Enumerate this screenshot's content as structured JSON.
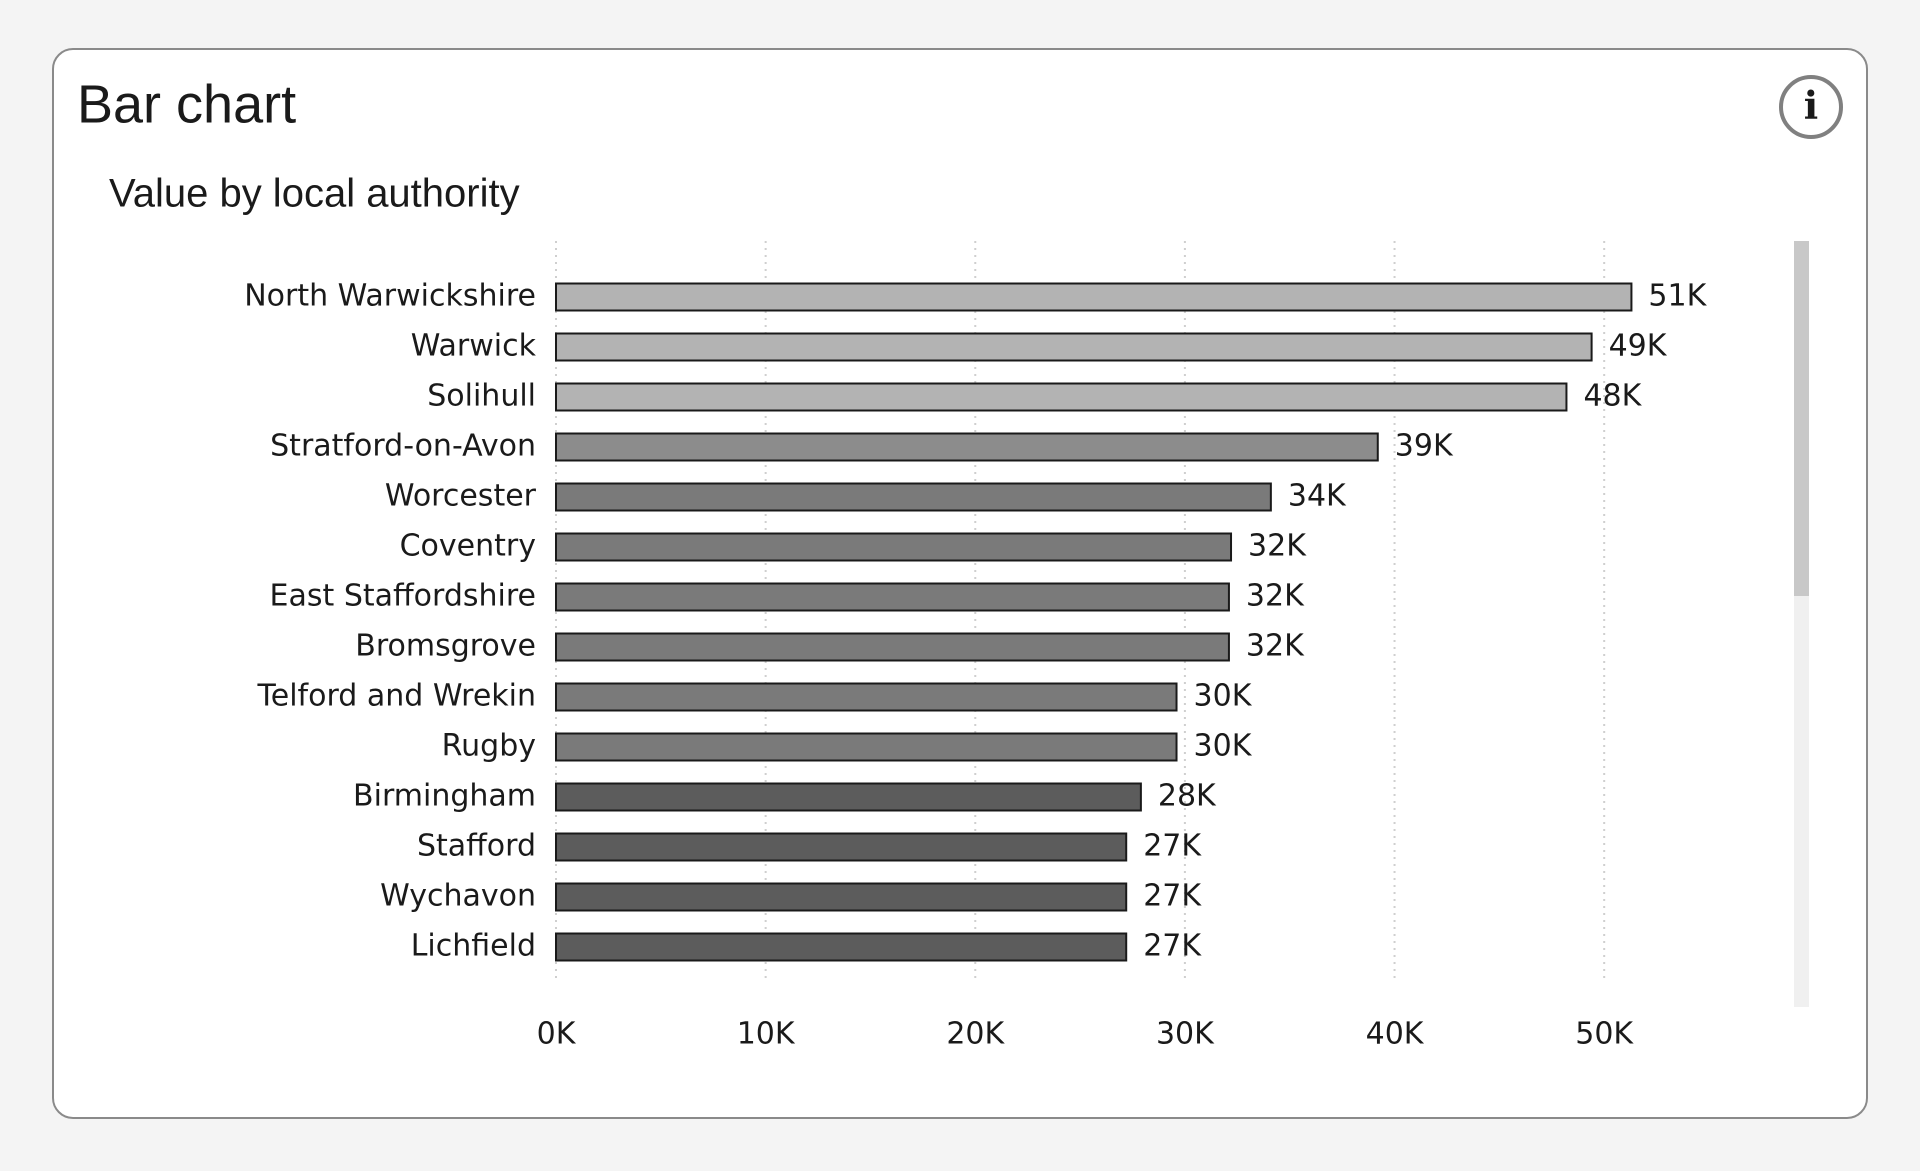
{
  "chart_data": {
    "type": "bar",
    "orientation": "horizontal",
    "title": "Bar chart",
    "subtitle": "Value by local authority",
    "categories": [
      "North Warwickshire",
      "Warwick",
      "Solihull",
      "Stratford-on-Avon",
      "Worcester",
      "Coventry",
      "East Staffordshire",
      "Bromsgrove",
      "Telford and Wrekin",
      "Rugby",
      "Birmingham",
      "Stafford",
      "Wychavon",
      "Lichfield"
    ],
    "values": [
      51300,
      49400,
      48200,
      39200,
      34100,
      32200,
      32100,
      32100,
      29600,
      29600,
      27900,
      27200,
      27200,
      27200
    ],
    "value_labels": [
      "51K",
      "49K",
      "48K",
      "39K",
      "34K",
      "32K",
      "32K",
      "32K",
      "30K",
      "30K",
      "28K",
      "27K",
      "27K",
      "27K"
    ],
    "colors": [
      "#b3b3b3",
      "#b3b3b3",
      "#b3b3b3",
      "#8c8c8c",
      "#7a7a7a",
      "#7a7a7a",
      "#7a7a7a",
      "#7a7a7a",
      "#7a7a7a",
      "#7a7a7a",
      "#5c5c5c",
      "#5c5c5c",
      "#5c5c5c",
      "#5c5c5c"
    ],
    "xlim": [
      0,
      55000
    ],
    "xticks": [
      {
        "value": 0,
        "label": "0K"
      },
      {
        "value": 10000,
        "label": "10K"
      },
      {
        "value": 20000,
        "label": "20K"
      },
      {
        "value": 30000,
        "label": "30K"
      },
      {
        "value": 40000,
        "label": "40K"
      },
      {
        "value": 50000,
        "label": "50K"
      }
    ],
    "grid": true
  }
}
